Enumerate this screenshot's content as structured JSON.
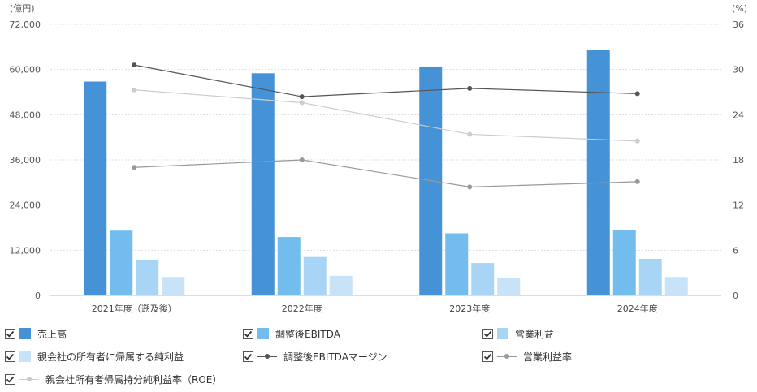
{
  "chart_data": {
    "type": "bar",
    "categories": [
      "2021年度（遡及後）",
      "2022年度",
      "2023年度",
      "2024年度"
    ],
    "left_axis": {
      "unit_label": "(億円)",
      "min": 0,
      "max": 72000,
      "ticks": [
        "0",
        "12,000",
        "24,000",
        "36,000",
        "48,000",
        "60,000",
        "72,000"
      ]
    },
    "right_axis": {
      "unit_label": "(%)",
      "min": 0,
      "max": 36,
      "ticks": [
        "0",
        "6",
        "12",
        "18",
        "24",
        "30",
        "36"
      ]
    },
    "grid": true,
    "legend_placement": "bottom",
    "series": [
      {
        "name": "売上高",
        "kind": "bar",
        "axis": "left",
        "color": "#4592d6",
        "values": [
          56800,
          59000,
          60800,
          65200
        ]
      },
      {
        "name": "調整後EBITDA",
        "kind": "bar",
        "axis": "left",
        "color": "#73bdee",
        "values": [
          17200,
          15500,
          16500,
          17400
        ]
      },
      {
        "name": "営業利益",
        "kind": "bar",
        "axis": "left",
        "color": "#a8d5f5",
        "values": [
          9500,
          10200,
          8600,
          9700
        ]
      },
      {
        "name": "親会社の所有者に帰属する純利益",
        "kind": "bar",
        "axis": "left",
        "color": "#c8e2f7",
        "values": [
          4900,
          5200,
          4700,
          4900
        ]
      },
      {
        "name": "調整後EBITDAマージン",
        "kind": "line",
        "axis": "right",
        "color": "#555555",
        "values": [
          30.6,
          26.4,
          27.5,
          26.8
        ]
      },
      {
        "name": "営業利益率",
        "kind": "line",
        "axis": "right",
        "color": "#999999",
        "values": [
          17.0,
          18.0,
          14.4,
          15.1
        ]
      },
      {
        "name": "親会社所有者帰属持分純利益率（ROE）",
        "kind": "line",
        "axis": "right",
        "color": "#cccccc",
        "values": [
          27.3,
          25.6,
          21.4,
          20.5
        ]
      }
    ]
  },
  "legend": [
    {
      "label": "売上高",
      "checked": true,
      "kind": "bar",
      "color": "#4592d6"
    },
    {
      "label": "調整後EBITDA",
      "checked": true,
      "kind": "bar",
      "color": "#73bdee"
    },
    {
      "label": "営業利益",
      "checked": true,
      "kind": "bar",
      "color": "#a8d5f5"
    },
    {
      "label": "親会社の所有者に帰属する純利益",
      "checked": true,
      "kind": "bar",
      "color": "#c8e2f7"
    },
    {
      "label": "調整後EBITDAマージン",
      "checked": true,
      "kind": "line",
      "color": "#555555"
    },
    {
      "label": "営業利益率",
      "checked": true,
      "kind": "line",
      "color": "#999999"
    },
    {
      "label": "親会社所有者帰属持分純利益率（ROE）",
      "checked": true,
      "kind": "line",
      "color": "#cccccc"
    }
  ]
}
